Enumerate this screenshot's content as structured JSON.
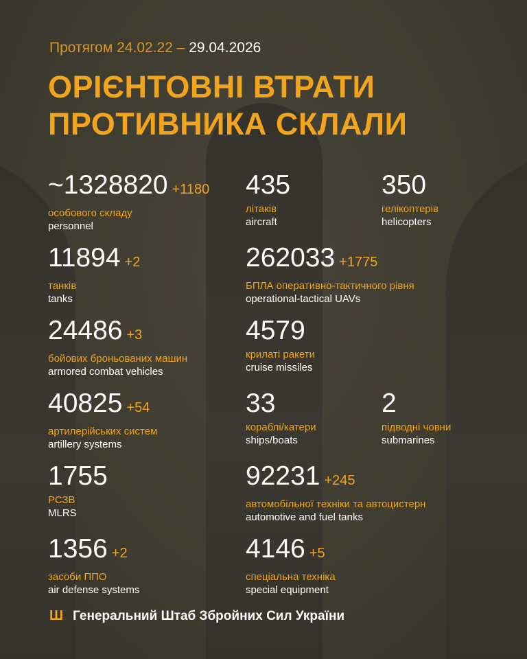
{
  "period": {
    "prefix": "Протягом 24.02.22 –",
    "end_date": "29.04.2026"
  },
  "title": {
    "line1": "ОРІЄНТОВНІ ВТРАТИ",
    "line2": "ПРОТИВНИКА СКЛАЛИ"
  },
  "stats": [
    {
      "value": "~1328820",
      "delta": "+1180",
      "ua": "особового складу",
      "en": "personnel"
    },
    {
      "value": "435",
      "delta": "",
      "ua": "літаків",
      "en": "aircraft"
    },
    {
      "value": "350",
      "delta": "",
      "ua": "гелікоптерів",
      "en": "helicopters"
    },
    {
      "value": "11894",
      "delta": "+2",
      "ua": "танків",
      "en": "tanks"
    },
    {
      "value": "262033",
      "delta": "+1775",
      "ua": "БПЛА оперативно-тактичного рівня",
      "en": "operational-tactical UAVs"
    },
    {
      "value": "24486",
      "delta": "+3",
      "ua": "бойових броньованих машин",
      "en": "armored combat vehicles"
    },
    {
      "value": "4579",
      "delta": "",
      "ua": "крилаті ракети",
      "en": "cruise missiles"
    },
    {
      "value": "40825",
      "delta": "+54",
      "ua": "артилерійських систем",
      "en": "artillery systems"
    },
    {
      "value": "33",
      "delta": "",
      "ua": "кораблі/катери",
      "en": "ships/boats"
    },
    {
      "value": "2",
      "delta": "",
      "ua": "підводні човни",
      "en": "submarines"
    },
    {
      "value": "1755",
      "delta": "",
      "ua": "РСЗВ",
      "en": "MLRS"
    },
    {
      "value": "92231",
      "delta": "+245",
      "ua": "автомобільної техніки та автоцистерн",
      "en": "automotive and fuel tanks"
    },
    {
      "value": "1356",
      "delta": "+2",
      "ua": "засоби ППО",
      "en": "air defense systems"
    },
    {
      "value": "4146",
      "delta": "+5",
      "ua": "спеціальна техніка",
      "en": "special equipment"
    }
  ],
  "footer": {
    "icon": "trident-icon",
    "text": "Генеральний Штаб Збройних Сил України"
  },
  "colors": {
    "background": "#3f3c30",
    "accent": "#f2a51c",
    "text": "#ffffff"
  }
}
